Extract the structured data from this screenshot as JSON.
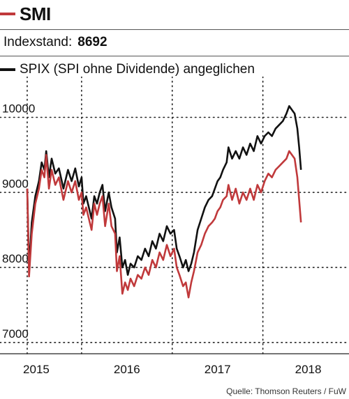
{
  "header": {
    "title": "SMI",
    "index_label": "Indexstand:",
    "index_value": "8692",
    "series_label": "SPIX (SPI ohne Dividende) angeglichen"
  },
  "source": "Quelle: Thomson Reuters / FuW",
  "colors": {
    "smi": "#c0393b",
    "spix": "#111111"
  },
  "chart_data": {
    "type": "line",
    "xlim": [
      2014.6,
      2018.45
    ],
    "ylim": [
      6850,
      10450
    ],
    "x_ticks": [
      2015,
      2016,
      2017,
      2018
    ],
    "x_tick_labels": [
      "2015",
      "2016",
      "2017",
      "2018"
    ],
    "y_ticks": [
      7000,
      8000,
      9000,
      10000
    ],
    "y_tick_labels": [
      "7000",
      "8000",
      "9000",
      "10000"
    ],
    "grid": true,
    "series": [
      {
        "name": "SPIX (SPI ohne Dividende) angeglichen",
        "color": "#111111",
        "points": [
          [
            2014.9,
            9050
          ],
          [
            2014.92,
            7980
          ],
          [
            2014.95,
            8600
          ],
          [
            2014.99,
            8950
          ],
          [
            2015.03,
            9150
          ],
          [
            2015.06,
            9400
          ],
          [
            2015.09,
            9300
          ],
          [
            2015.11,
            9550
          ],
          [
            2015.14,
            9200
          ],
          [
            2015.17,
            9450
          ],
          [
            2015.21,
            9250
          ],
          [
            2015.25,
            9320
          ],
          [
            2015.3,
            9050
          ],
          [
            2015.35,
            9300
          ],
          [
            2015.39,
            9150
          ],
          [
            2015.43,
            9320
          ],
          [
            2015.47,
            9080
          ],
          [
            2015.5,
            9200
          ],
          [
            2015.52,
            8850
          ],
          [
            2015.55,
            8950
          ],
          [
            2015.58,
            8800
          ],
          [
            2015.61,
            8650
          ],
          [
            2015.64,
            8950
          ],
          [
            2015.67,
            8850
          ],
          [
            2015.7,
            9000
          ],
          [
            2015.73,
            9100
          ],
          [
            2015.76,
            8750
          ],
          [
            2015.8,
            9000
          ],
          [
            2015.83,
            8800
          ],
          [
            2015.87,
            8650
          ],
          [
            2015.89,
            8200
          ],
          [
            2015.92,
            8400
          ],
          [
            2015.95,
            8000
          ],
          [
            2015.98,
            8100
          ],
          [
            2016.01,
            7900
          ],
          [
            2016.04,
            8050
          ],
          [
            2016.08,
            8000
          ],
          [
            2016.12,
            8150
          ],
          [
            2016.16,
            8100
          ],
          [
            2016.2,
            8250
          ],
          [
            2016.24,
            8150
          ],
          [
            2016.28,
            8350
          ],
          [
            2016.32,
            8250
          ],
          [
            2016.36,
            8450
          ],
          [
            2016.4,
            8350
          ],
          [
            2016.44,
            8550
          ],
          [
            2016.48,
            8450
          ],
          [
            2016.52,
            8500
          ],
          [
            2016.55,
            8250
          ],
          [
            2016.58,
            8150
          ],
          [
            2016.62,
            8000
          ],
          [
            2016.65,
            8100
          ],
          [
            2016.68,
            7950
          ],
          [
            2016.71,
            8050
          ],
          [
            2016.74,
            8200
          ],
          [
            2016.78,
            8500
          ],
          [
            2016.82,
            8650
          ],
          [
            2016.86,
            8800
          ],
          [
            2016.9,
            8900
          ],
          [
            2016.94,
            8950
          ],
          [
            2016.97,
            9050
          ],
          [
            2017.0,
            9150
          ],
          [
            2017.03,
            9200
          ],
          [
            2017.06,
            9300
          ],
          [
            2017.1,
            9400
          ],
          [
            2017.12,
            9600
          ],
          [
            2017.16,
            9450
          ],
          [
            2017.2,
            9550
          ],
          [
            2017.24,
            9450
          ],
          [
            2017.28,
            9600
          ],
          [
            2017.32,
            9500
          ],
          [
            2017.36,
            9650
          ],
          [
            2017.4,
            9550
          ],
          [
            2017.44,
            9750
          ],
          [
            2017.48,
            9650
          ],
          [
            2017.52,
            9750
          ],
          [
            2017.56,
            9800
          ],
          [
            2017.6,
            9750
          ],
          [
            2017.64,
            9850
          ],
          [
            2017.68,
            9900
          ],
          [
            2017.72,
            9950
          ],
          [
            2017.76,
            10050
          ],
          [
            2017.79,
            10150
          ],
          [
            2017.82,
            10100
          ],
          [
            2017.85,
            10050
          ],
          [
            2017.88,
            9850
          ],
          [
            2017.9,
            9600
          ],
          [
            2017.92,
            9300
          ]
        ]
      },
      {
        "name": "SMI",
        "color": "#c0393b",
        "points": [
          [
            2014.9,
            9050
          ],
          [
            2014.92,
            7880
          ],
          [
            2014.95,
            8450
          ],
          [
            2014.99,
            8850
          ],
          [
            2015.03,
            9050
          ],
          [
            2015.06,
            9300
          ],
          [
            2015.09,
            9200
          ],
          [
            2015.11,
            9500
          ],
          [
            2015.14,
            9050
          ],
          [
            2015.17,
            9300
          ],
          [
            2015.21,
            9100
          ],
          [
            2015.25,
            9200
          ],
          [
            2015.3,
            8900
          ],
          [
            2015.35,
            9150
          ],
          [
            2015.39,
            9000
          ],
          [
            2015.43,
            9150
          ],
          [
            2015.47,
            8900
          ],
          [
            2015.5,
            9000
          ],
          [
            2015.52,
            8700
          ],
          [
            2015.55,
            8800
          ],
          [
            2015.58,
            8650
          ],
          [
            2015.61,
            8500
          ],
          [
            2015.64,
            8850
          ],
          [
            2015.67,
            8700
          ],
          [
            2015.7,
            8850
          ],
          [
            2015.73,
            8950
          ],
          [
            2015.76,
            8550
          ],
          [
            2015.8,
            8850
          ],
          [
            2015.83,
            8550
          ],
          [
            2015.87,
            8450
          ],
          [
            2015.89,
            7950
          ],
          [
            2015.92,
            8150
          ],
          [
            2015.95,
            7650
          ],
          [
            2015.98,
            7800
          ],
          [
            2016.01,
            7700
          ],
          [
            2016.04,
            7850
          ],
          [
            2016.08,
            7750
          ],
          [
            2016.12,
            7900
          ],
          [
            2016.16,
            7850
          ],
          [
            2016.2,
            8000
          ],
          [
            2016.24,
            7900
          ],
          [
            2016.28,
            8100
          ],
          [
            2016.32,
            8000
          ],
          [
            2016.36,
            8200
          ],
          [
            2016.4,
            8100
          ],
          [
            2016.44,
            8300
          ],
          [
            2016.48,
            8150
          ],
          [
            2016.52,
            8250
          ],
          [
            2016.55,
            8000
          ],
          [
            2016.58,
            7900
          ],
          [
            2016.62,
            7750
          ],
          [
            2016.65,
            7800
          ],
          [
            2016.68,
            7600
          ],
          [
            2016.71,
            7800
          ],
          [
            2016.74,
            7950
          ],
          [
            2016.78,
            8200
          ],
          [
            2016.82,
            8300
          ],
          [
            2016.86,
            8450
          ],
          [
            2016.9,
            8550
          ],
          [
            2016.94,
            8600
          ],
          [
            2016.97,
            8650
          ],
          [
            2017.0,
            8750
          ],
          [
            2017.03,
            8800
          ],
          [
            2017.06,
            8900
          ],
          [
            2017.1,
            8950
          ],
          [
            2017.12,
            9100
          ],
          [
            2017.16,
            8900
          ],
          [
            2017.2,
            9050
          ],
          [
            2017.24,
            8850
          ],
          [
            2017.28,
            9000
          ],
          [
            2017.32,
            8900
          ],
          [
            2017.36,
            9050
          ],
          [
            2017.4,
            8900
          ],
          [
            2017.44,
            9100
          ],
          [
            2017.48,
            9000
          ],
          [
            2017.52,
            9150
          ],
          [
            2017.56,
            9250
          ],
          [
            2017.6,
            9200
          ],
          [
            2017.64,
            9300
          ],
          [
            2017.68,
            9350
          ],
          [
            2017.72,
            9400
          ],
          [
            2017.76,
            9450
          ],
          [
            2017.79,
            9550
          ],
          [
            2017.82,
            9500
          ],
          [
            2017.85,
            9450
          ],
          [
            2017.88,
            9200
          ],
          [
            2017.9,
            8900
          ],
          [
            2017.92,
            8600
          ]
        ]
      }
    ]
  }
}
